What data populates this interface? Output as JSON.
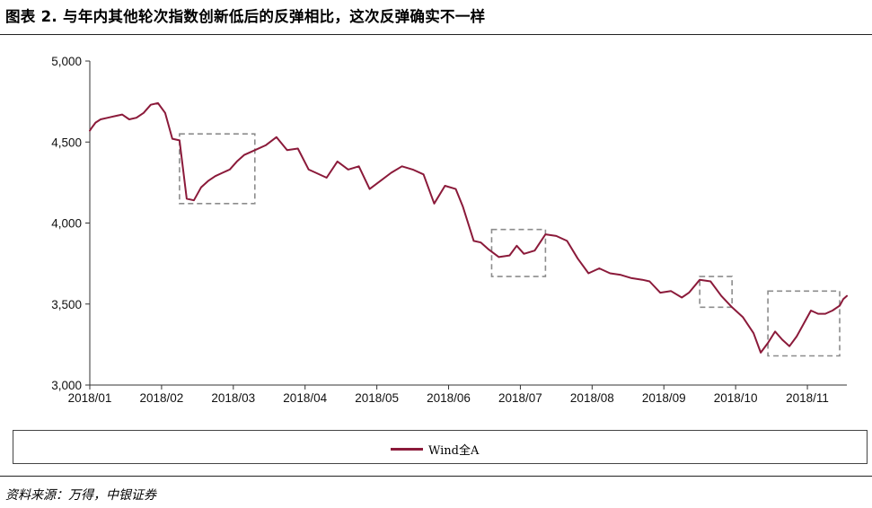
{
  "title": "图表 2. 与年内其他轮次指数创新低后的反弹相比，这次反弹确实不一样",
  "source": "资料来源：万得，中银证券",
  "colors": {
    "series": "#8b1a3a",
    "box": "#8c8c8c",
    "axis": "#333333"
  },
  "chart_data": {
    "type": "line",
    "title": "",
    "xlabel": "",
    "ylabel": "",
    "ylim": [
      3000,
      5000
    ],
    "yticks": [
      3000,
      3500,
      4000,
      4500,
      5000
    ],
    "ytick_labels": [
      "3,000",
      "3,500",
      "4,000",
      "4,500",
      "5,000"
    ],
    "xtick_labels": [
      "2018/01",
      "2018/02",
      "2018/03",
      "2018/04",
      "2018/05",
      "2018/06",
      "2018/07",
      "2018/08",
      "2018/09",
      "2018/10",
      "2018/11"
    ],
    "xlim": [
      0,
      10.55
    ],
    "legend": "bottom",
    "series": [
      {
        "name": "Wind全A",
        "x": [
          0.0,
          0.03,
          0.08,
          0.15,
          0.25,
          0.35,
          0.45,
          0.55,
          0.65,
          0.75,
          0.85,
          0.95,
          1.05,
          1.15,
          1.25,
          1.35,
          1.45,
          1.55,
          1.65,
          1.75,
          1.85,
          1.95,
          2.05,
          2.15,
          2.3,
          2.45,
          2.6,
          2.75,
          2.9,
          3.05,
          3.15,
          3.3,
          3.45,
          3.6,
          3.75,
          3.9,
          4.05,
          4.2,
          4.35,
          4.5,
          4.65,
          4.8,
          4.95,
          5.1,
          5.2,
          5.35,
          5.45,
          5.55,
          5.7,
          5.85,
          5.95,
          6.05,
          6.2,
          6.35,
          6.5,
          6.65,
          6.8,
          6.95,
          7.1,
          7.25,
          7.4,
          7.55,
          7.7,
          7.8,
          7.95,
          8.1,
          8.25,
          8.35,
          8.5,
          8.65,
          8.8,
          8.95,
          9.1,
          9.25,
          9.35,
          9.45,
          9.55,
          9.65,
          9.75,
          9.85,
          9.95,
          10.05,
          10.15,
          10.25,
          10.35,
          10.45,
          10.5,
          10.55
        ],
        "values": [
          4570,
          4590,
          4620,
          4640,
          4650,
          4660,
          4670,
          4640,
          4650,
          4680,
          4730,
          4740,
          4680,
          4520,
          4510,
          4150,
          4140,
          4220,
          4260,
          4290,
          4310,
          4330,
          4380,
          4420,
          4450,
          4480,
          4530,
          4450,
          4460,
          4330,
          4310,
          4280,
          4380,
          4330,
          4350,
          4210,
          4260,
          4310,
          4350,
          4330,
          4300,
          4120,
          4230,
          4210,
          4100,
          3890,
          3880,
          3840,
          3790,
          3800,
          3860,
          3810,
          3830,
          3930,
          3920,
          3890,
          3780,
          3690,
          3720,
          3690,
          3680,
          3660,
          3650,
          3640,
          3570,
          3580,
          3540,
          3570,
          3650,
          3640,
          3550,
          3480,
          3420,
          3320,
          3200,
          3260,
          3330,
          3280,
          3240,
          3300,
          3380,
          3460,
          3440,
          3440,
          3460,
          3490,
          3530,
          3550
        ]
      }
    ],
    "annotations": [
      {
        "type": "dashed-box",
        "x": [
          1.25,
          2.3
        ],
        "y": [
          4120,
          4550
        ]
      },
      {
        "type": "dashed-box",
        "x": [
          5.6,
          6.35
        ],
        "y": [
          3670,
          3960
        ]
      },
      {
        "type": "dashed-box",
        "x": [
          8.5,
          8.95
        ],
        "y": [
          3480,
          3670
        ]
      },
      {
        "type": "dashed-box",
        "x": [
          9.45,
          10.45
        ],
        "y": [
          3180,
          3580
        ]
      }
    ]
  }
}
